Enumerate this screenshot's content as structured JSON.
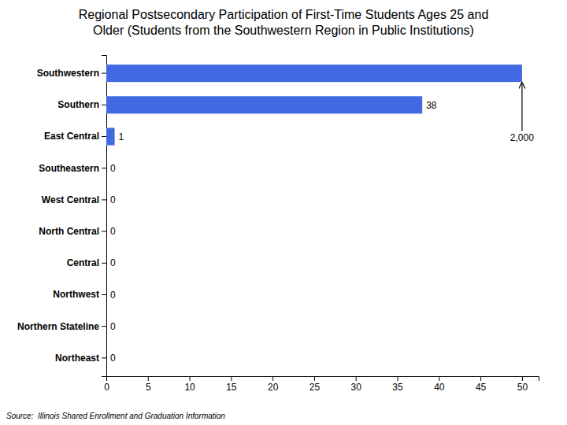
{
  "chart_data": {
    "type": "bar",
    "orientation": "horizontal",
    "title": "Regional Postsecondary Participation of First-Time Students Ages 25 and\nOlder (Students from the Southwestern Region in Public Institutions)",
    "categories": [
      "Northeast",
      "Northern Stateline",
      "Northwest",
      "Central",
      "North Central",
      "West Central",
      "Southeastern",
      "East Central",
      "Southern",
      "Southwestern"
    ],
    "values": [
      0,
      0,
      0,
      0,
      0,
      0,
      0,
      1,
      38,
      50
    ],
    "value_labels": [
      "0",
      "0",
      "0",
      "0",
      "0",
      "0",
      "0",
      "1",
      "38",
      null
    ],
    "data_labels": true,
    "color": "#4169E1",
    "xlim": [
      0,
      52
    ],
    "xticks": [
      0,
      5,
      10,
      15,
      20,
      25,
      30,
      35,
      40,
      45,
      50
    ],
    "grid": false,
    "annotations": [
      {
        "text": "2,000",
        "x": 50,
        "y": "Southwestern"
      }
    ],
    "source": "Source:  Illinois Shared Enrollment and Graduation Information"
  }
}
